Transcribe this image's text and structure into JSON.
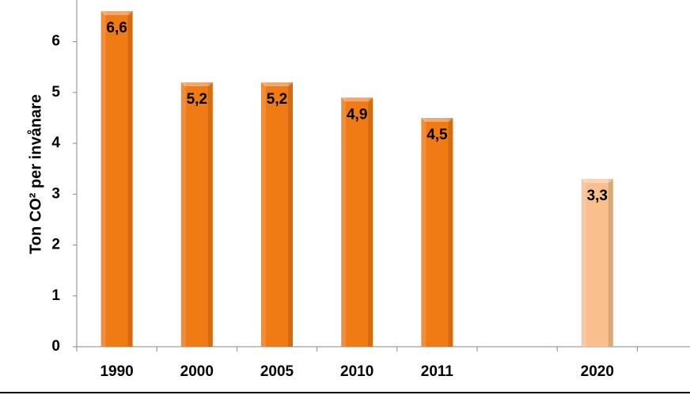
{
  "chart_data": {
    "type": "bar",
    "y_label": "Ton CO² per invånare",
    "categories": [
      "1990",
      "2000",
      "2005",
      "2010",
      "2011",
      null,
      "2020"
    ],
    "values": [
      6.6,
      5.2,
      5.2,
      4.9,
      4.5,
      null,
      3.3
    ],
    "value_labels": [
      "6,6",
      "5,2",
      "5,2",
      "4,9",
      "4,5",
      null,
      "3,3"
    ],
    "colors": [
      "#f07a14",
      "#f07a14",
      "#f07a14",
      "#f07a14",
      "#f07a14",
      null,
      "#f9bf8c"
    ],
    "ylim": [
      0,
      6.82
    ],
    "yticks": [
      0,
      1,
      2,
      3,
      4,
      5,
      6
    ],
    "grid": false
  }
}
